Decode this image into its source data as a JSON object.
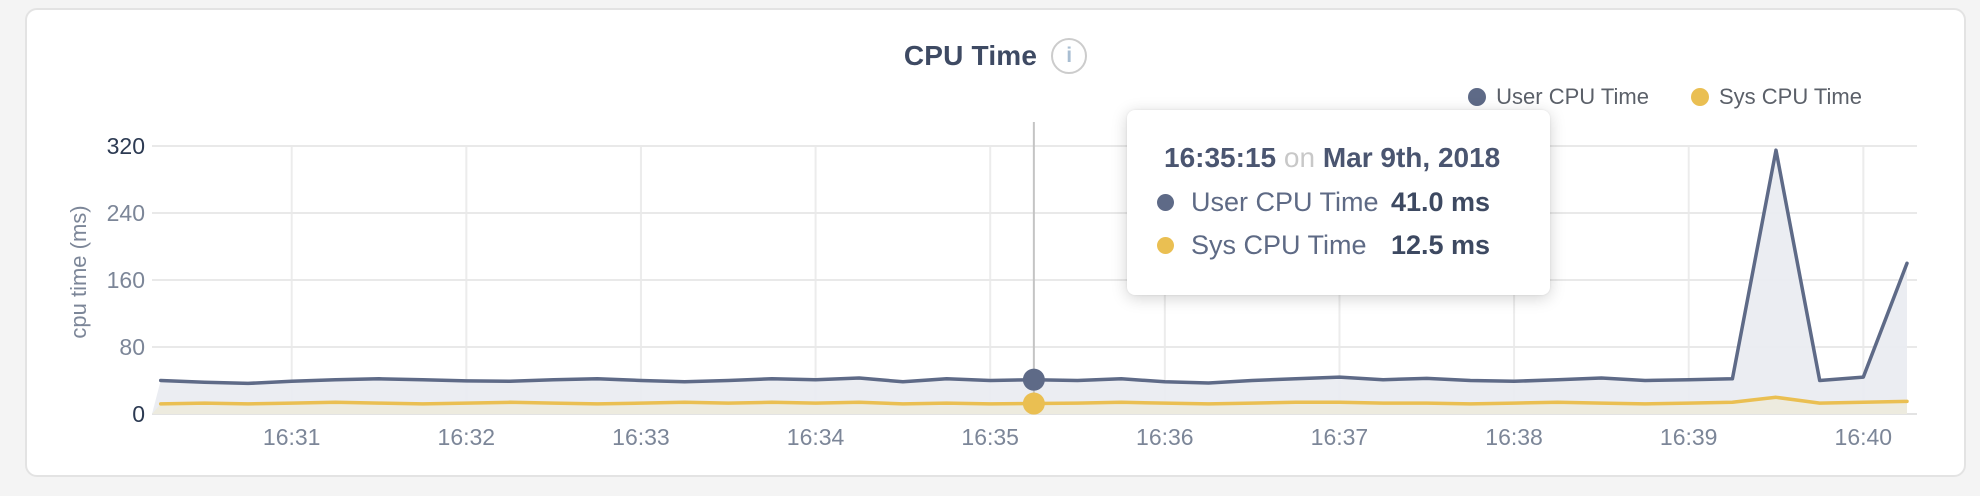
{
  "header": {
    "title": "CPU Time",
    "info_icon_glyph": "i"
  },
  "tooltip": {
    "time": "16:35:15",
    "conjunction": "on",
    "date": "Mar 9th, 2018",
    "rows": [
      {
        "label": "User CPU Time",
        "value": "41.0 ms"
      },
      {
        "label": "Sys CPU Time",
        "value": "12.5 ms"
      }
    ]
  },
  "chart_data": {
    "type": "line",
    "title": "CPU Time",
    "xlabel": "",
    "ylabel": "cpu time (ms)",
    "ylim": [
      0,
      320
    ],
    "y_ticks": [
      0,
      80,
      160,
      240,
      320
    ],
    "x_ticks": [
      "16:31",
      "16:32",
      "16:33",
      "16:34",
      "16:35",
      "16:36",
      "16:37",
      "16:38",
      "16:39",
      "16:40"
    ],
    "time_domain": [
      "16:30:12",
      "16:40:15"
    ],
    "grid": true,
    "legend_position": "top-right",
    "times": [
      "16:30:15",
      "16:30:30",
      "16:30:45",
      "16:31:00",
      "16:31:15",
      "16:31:30",
      "16:31:45",
      "16:32:00",
      "16:32:15",
      "16:32:30",
      "16:32:45",
      "16:33:00",
      "16:33:15",
      "16:33:30",
      "16:33:45",
      "16:34:00",
      "16:34:15",
      "16:34:30",
      "16:34:45",
      "16:35:00",
      "16:35:15",
      "16:35:30",
      "16:35:45",
      "16:36:00",
      "16:36:15",
      "16:36:30",
      "16:36:45",
      "16:37:00",
      "16:37:15",
      "16:37:30",
      "16:37:45",
      "16:38:00",
      "16:38:15",
      "16:38:30",
      "16:38:45",
      "16:39:00",
      "16:39:15",
      "16:39:30",
      "16:39:45",
      "16:40:00",
      "16:40:15"
    ],
    "series": [
      {
        "name": "User CPU Time",
        "unit": "ms",
        "color": "#5e6a87",
        "fill": "#e9ecf1",
        "values": [
          40,
          38,
          36.5,
          39,
          41,
          42,
          41,
          39.5,
          39,
          41,
          42,
          40,
          38.5,
          40,
          42,
          41,
          43,
          38.5,
          42,
          40,
          41,
          40,
          42,
          38.5,
          37,
          40,
          42,
          44,
          41,
          42.5,
          40,
          39,
          41,
          43,
          40,
          41,
          42,
          315,
          40,
          44,
          180
        ]
      },
      {
        "name": "Sys CPU Time",
        "unit": "ms",
        "color": "#eabf52",
        "fill": "#edeadd",
        "values": [
          12,
          13,
          12,
          13,
          14,
          13,
          12,
          13,
          14,
          13,
          12,
          13,
          14,
          13,
          14,
          13,
          14,
          12,
          13,
          12,
          12.5,
          13,
          14,
          13,
          12,
          13,
          14,
          14,
          13,
          13,
          12,
          13,
          14,
          13,
          12,
          13,
          14,
          20,
          13,
          14,
          15
        ]
      }
    ],
    "highlight": {
      "time": "16:35:15",
      "values": [
        41.0,
        12.5
      ],
      "crosshair_color": "#c4c4c4"
    },
    "grid_color": "#ececec",
    "baseline_color": "#e3e3e3"
  }
}
